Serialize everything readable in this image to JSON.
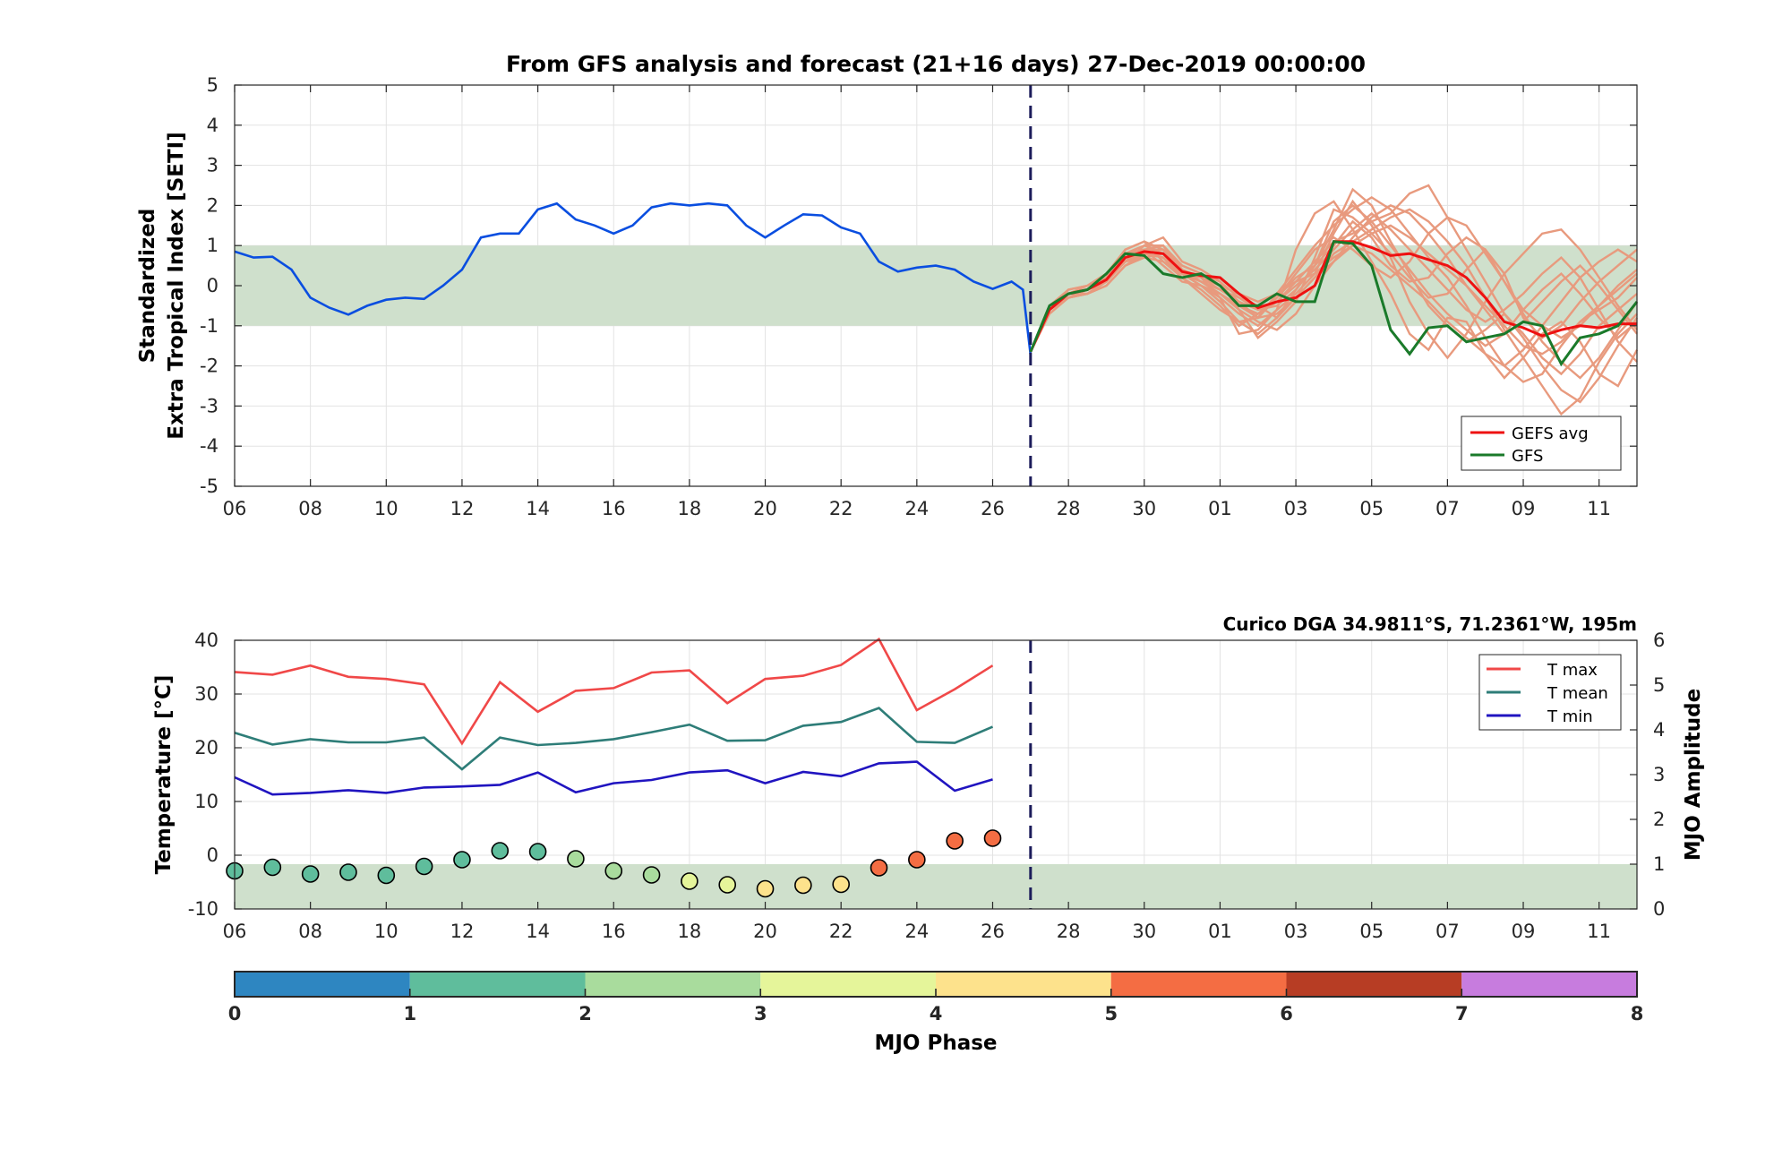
{
  "colors": {
    "analysis": "#0a4ee0",
    "member": "#e89a7e",
    "gefs_avg": "#ee1111",
    "gfs": "#1a7a2a",
    "band": "#cfe0cc",
    "dash": "#1c1c5a",
    "tmax": "#f04848",
    "tmean": "#2e7d78",
    "tmin": "#2014c0"
  },
  "chart_data": [
    {
      "type": "line",
      "title": "From GFS analysis and forecast (21+16 days) 27-Dec-2019 00:00:00",
      "ylabel_line1": "Standardized",
      "ylabel_line2": "Extra Tropical Index [SETI]",
      "xlim": [
        0,
        37
      ],
      "ylim": [
        -5,
        5
      ],
      "yticks": [
        "5",
        "4",
        "3",
        "2",
        "1",
        "0",
        "-1",
        "-2",
        "-3",
        "-4",
        "-5"
      ],
      "xticks": [
        "06",
        "08",
        "10",
        "12",
        "14",
        "16",
        "18",
        "20",
        "22",
        "24",
        "26",
        "28",
        "30",
        "01",
        "03",
        "05",
        "07",
        "09",
        "11"
      ],
      "band": [
        -1,
        1
      ],
      "forecast_start": 21,
      "legend": {
        "placement": "bottom-right",
        "gefs_avg": "GEFS avg",
        "gfs": "GFS"
      },
      "analysis": {
        "x": [
          0,
          0.5,
          1,
          1.5,
          2,
          2.5,
          3,
          3.5,
          4,
          4.5,
          5,
          5.5,
          6,
          6.5,
          7,
          7.5,
          8,
          8.5,
          9,
          9.5,
          10,
          10.5,
          11,
          11.5,
          12,
          12.5,
          13,
          13.5,
          14,
          14.5,
          15,
          15.5,
          16,
          16.5,
          17,
          17.5,
          18,
          18.5,
          19,
          19.5,
          20,
          20.5,
          20.8,
          21
        ],
        "y": [
          0.85,
          0.7,
          0.72,
          0.4,
          -0.3,
          -0.55,
          -0.72,
          -0.5,
          -0.35,
          -0.3,
          -0.33,
          0.0,
          0.4,
          1.2,
          1.3,
          1.3,
          1.9,
          2.05,
          1.65,
          1.5,
          1.3,
          1.5,
          1.95,
          2.05,
          2.0,
          2.05,
          2.0,
          1.5,
          1.2,
          1.5,
          1.78,
          1.75,
          1.45,
          1.3,
          0.6,
          0.35,
          0.45,
          0.5,
          0.4,
          0.1,
          -0.08,
          0.1,
          -0.1,
          -1.72
        ]
      },
      "gefs_avg": {
        "x": [
          21,
          21.5,
          22,
          22.5,
          23,
          23.5,
          24,
          24.5,
          25,
          25.5,
          26,
          26.5,
          27,
          27.5,
          28,
          28.5,
          29,
          29.5,
          30,
          30.5,
          31,
          31.5,
          32,
          32.5,
          33,
          33.5,
          34,
          34.5,
          35,
          35.5,
          36,
          36.5,
          37
        ],
        "y": [
          -1.65,
          -0.6,
          -0.2,
          -0.1,
          0.15,
          0.7,
          0.85,
          0.8,
          0.35,
          0.25,
          0.2,
          -0.2,
          -0.55,
          -0.4,
          -0.3,
          0.0,
          1.1,
          1.1,
          0.95,
          0.75,
          0.8,
          0.65,
          0.5,
          0.2,
          -0.3,
          -0.9,
          -1.05,
          -1.25,
          -1.1,
          -1.0,
          -1.05,
          -0.95,
          -0.95
        ]
      },
      "gfs": {
        "x": [
          21,
          21.5,
          22,
          22.5,
          23,
          23.5,
          24,
          24.5,
          25,
          25.5,
          26,
          26.5,
          27,
          27.5,
          28,
          28.5,
          29,
          29.5,
          30,
          30.5,
          31,
          31.5,
          32,
          32.5,
          33,
          33.5,
          34,
          34.5,
          35,
          35.5,
          36,
          36.5,
          37
        ],
        "y": [
          -1.65,
          -0.5,
          -0.2,
          -0.1,
          0.3,
          0.8,
          0.75,
          0.3,
          0.2,
          0.3,
          0.0,
          -0.5,
          -0.5,
          -0.2,
          -0.4,
          -0.4,
          1.1,
          1.05,
          0.5,
          -1.1,
          -1.7,
          -1.05,
          -1.0,
          -1.4,
          -1.3,
          -1.2,
          -0.9,
          -1.0,
          -1.95,
          -1.3,
          -1.2,
          -1.0,
          -0.4
        ]
      },
      "members_x": [
        21,
        21.5,
        22,
        22.5,
        23,
        23.5,
        24,
        24.5,
        25,
        25.5,
        26,
        26.5,
        27,
        27.5,
        28,
        28.5,
        29,
        29.5,
        30,
        30.5,
        31,
        31.5,
        32,
        32.5,
        33,
        33.5,
        34,
        34.5,
        35,
        35.5,
        36,
        36.5,
        37
      ],
      "members": [
        [
          -1.65,
          -0.6,
          -0.2,
          -0.1,
          0.2,
          0.9,
          1.1,
          0.6,
          0.3,
          0.2,
          -0.3,
          -1.2,
          -1.1,
          -0.6,
          0.9,
          1.8,
          2.1,
          1.4,
          0.6,
          -0.2,
          -1.2,
          -1.6,
          -0.8,
          -0.9,
          -1.7,
          -2.3,
          -1.8,
          -1.2,
          -0.9,
          -1.4,
          -2.2,
          -2.5,
          -1.6
        ],
        [
          -1.65,
          -0.6,
          -0.3,
          -0.2,
          0.1,
          0.6,
          0.9,
          1.0,
          0.5,
          0.3,
          0.0,
          -0.4,
          -0.8,
          -0.3,
          0.2,
          0.5,
          1.4,
          2.4,
          2.0,
          1.1,
          0.3,
          -0.5,
          -1.0,
          -1.4,
          -1.1,
          -0.7,
          -1.2,
          -1.8,
          -2.2,
          -1.7,
          -1.0,
          -0.6,
          -0.2
        ],
        [
          -1.65,
          -0.5,
          -0.1,
          0.0,
          0.3,
          0.8,
          1.0,
          1.2,
          0.6,
          0.4,
          0.1,
          -0.6,
          -1.3,
          -0.9,
          -0.4,
          0.7,
          1.9,
          1.7,
          1.3,
          0.8,
          0.2,
          -0.3,
          -0.2,
          0.4,
          0.9,
          0.3,
          -0.8,
          -1.3,
          -1.0,
          -0.4,
          0.1,
          0.5,
          0.9
        ],
        [
          -1.65,
          -0.7,
          -0.3,
          -0.2,
          0.0,
          0.5,
          0.8,
          0.7,
          0.2,
          -0.2,
          -0.6,
          -0.9,
          -0.8,
          -0.2,
          0.4,
          1.0,
          1.5,
          1.9,
          2.2,
          1.9,
          1.3,
          0.7,
          0.2,
          -0.5,
          -1.3,
          -2.0,
          -2.4,
          -2.2,
          -1.5,
          -0.9,
          -0.6,
          -0.3,
          0.2
        ],
        [
          -1.65,
          -0.6,
          -0.2,
          -0.1,
          0.2,
          0.7,
          0.9,
          0.9,
          0.4,
          0.1,
          -0.2,
          -0.5,
          -0.7,
          -0.4,
          0.1,
          0.6,
          1.1,
          1.3,
          1.6,
          1.8,
          2.3,
          2.5,
          1.7,
          0.9,
          0.1,
          -0.7,
          -1.3,
          -2.0,
          -2.6,
          -2.9,
          -2.3,
          -1.5,
          -0.8
        ],
        [
          -1.65,
          -0.6,
          -0.2,
          0.0,
          0.3,
          0.8,
          0.9,
          0.5,
          0.1,
          0.0,
          -0.4,
          -0.9,
          -1.2,
          -0.8,
          -0.1,
          0.5,
          1.0,
          1.6,
          1.2,
          0.5,
          0.1,
          0.2,
          0.8,
          1.2,
          0.9,
          0.1,
          -0.7,
          -1.4,
          -1.9,
          -2.3,
          -1.8,
          -1.1,
          -0.4
        ],
        [
          -1.65,
          -0.6,
          -0.3,
          -0.1,
          0.1,
          0.7,
          0.8,
          0.7,
          0.3,
          0.0,
          -0.3,
          -0.7,
          -1.0,
          -0.6,
          -0.2,
          0.3,
          1.3,
          2.1,
          1.5,
          0.7,
          -0.4,
          -1.2,
          -1.8,
          -1.2,
          -0.4,
          0.3,
          0.8,
          1.3,
          1.4,
          0.9,
          0.2,
          -0.5,
          -1.1
        ],
        [
          -1.65,
          -0.5,
          -0.2,
          -0.1,
          0.2,
          0.6,
          1.0,
          1.0,
          0.4,
          0.2,
          -0.1,
          -0.4,
          -0.6,
          -0.4,
          0.0,
          0.4,
          0.9,
          1.4,
          1.8,
          1.4,
          0.9,
          0.4,
          -0.1,
          -0.6,
          -0.9,
          -0.6,
          -0.2,
          0.3,
          0.7,
          0.2,
          -0.6,
          -1.4,
          -1.9
        ],
        [
          -1.65,
          -0.6,
          -0.2,
          -0.1,
          0.2,
          0.8,
          1.0,
          0.8,
          0.3,
          0.1,
          -0.1,
          -0.3,
          -0.5,
          -0.8,
          -0.3,
          0.2,
          0.8,
          1.1,
          1.4,
          1.7,
          1.9,
          1.6,
          1.1,
          0.5,
          -0.3,
          -1.1,
          -1.8,
          -2.5,
          -3.2,
          -2.8,
          -1.9,
          -1.2,
          -0.7
        ],
        [
          -1.65,
          -0.6,
          -0.2,
          -0.1,
          0.1,
          0.6,
          0.7,
          0.6,
          0.2,
          -0.1,
          -0.5,
          -1.0,
          -0.7,
          -0.3,
          0.3,
          0.9,
          1.2,
          0.9,
          0.5,
          0.2,
          0.6,
          1.3,
          1.7,
          1.5,
          0.8,
          0.1,
          -0.6,
          -1.0,
          -1.3,
          -1.0,
          -0.5,
          0.0,
          0.4
        ],
        [
          -1.65,
          -0.6,
          -0.1,
          0.0,
          0.3,
          0.9,
          1.1,
          0.9,
          0.4,
          0.2,
          0.0,
          -0.2,
          -0.4,
          -0.2,
          0.1,
          0.3,
          0.7,
          1.0,
          1.3,
          1.5,
          1.2,
          0.8,
          0.4,
          0.0,
          -0.5,
          -1.0,
          -1.5,
          -1.7,
          -1.4,
          -0.9,
          -0.5,
          -0.1,
          0.3
        ],
        [
          -1.65,
          -0.6,
          -0.2,
          -0.2,
          0.0,
          0.5,
          0.7,
          0.8,
          0.3,
          0.1,
          -0.2,
          -0.6,
          -0.9,
          -1.1,
          -0.7,
          0.0,
          0.6,
          1.2,
          1.7,
          2.0,
          1.8,
          1.3,
          0.7,
          0.0,
          -0.6,
          -1.2,
          -0.9,
          -0.4,
          0.1,
          0.5,
          0.0,
          -0.6,
          -1.2
        ],
        [
          -1.65,
          -0.5,
          -0.2,
          -0.1,
          0.2,
          0.7,
          0.9,
          0.9,
          0.5,
          0.3,
          0.1,
          -0.3,
          -0.6,
          -0.5,
          -0.1,
          0.5,
          1.6,
          2.0,
          1.6,
          1.0,
          0.4,
          -0.2,
          -0.7,
          -1.1,
          -1.5,
          -1.2,
          -0.6,
          -0.1,
          0.3,
          -0.2,
          -0.8,
          -1.3,
          -0.9
        ],
        [
          -1.65,
          -0.6,
          -0.3,
          -0.2,
          0.1,
          0.6,
          0.8,
          0.7,
          0.3,
          0.0,
          -0.2,
          -0.5,
          -0.8,
          -0.7,
          -0.3,
          0.2,
          0.6,
          1.0,
          0.8,
          0.4,
          0.0,
          -0.4,
          -0.9,
          -1.3,
          -1.7,
          -2.0,
          -1.6,
          -1.0,
          -0.4,
          0.2,
          0.6,
          0.9,
          0.6
        ]
      ]
    },
    {
      "type": "scatter",
      "title": "Curico DGA 34.9811°S, 71.2361°W, 195m",
      "ylabel": "Temperature [°C]",
      "y2label": "MJO Amplitude",
      "xlim": [
        0,
        37
      ],
      "ylim": [
        -10,
        40
      ],
      "y2lim": [
        0,
        6
      ],
      "yticks": [
        "40",
        "30",
        "20",
        "10",
        "0",
        "-10"
      ],
      "y2ticks": [
        "6",
        "5",
        "4",
        "3",
        "2",
        "1",
        "0"
      ],
      "band_amplitude": [
        0,
        1
      ],
      "forecast_start": 21,
      "legend": {
        "placement": "top-right",
        "tmax": "T max",
        "tmean": "T mean",
        "tmin": "T min"
      },
      "x": [
        0,
        1,
        2,
        3,
        4,
        5,
        6,
        7,
        8,
        9,
        10,
        11,
        12,
        13,
        14,
        15,
        16,
        17,
        18,
        19,
        20
      ],
      "tmax": [
        34.1,
        33.6,
        35.3,
        33.2,
        32.8,
        31.8,
        20.8,
        32.2,
        26.7,
        30.6,
        31.1,
        34.0,
        34.4,
        28.3,
        32.8,
        33.4,
        35.4,
        40.2,
        27.0,
        30.9,
        35.3
      ],
      "tmean": [
        22.8,
        20.6,
        21.6,
        21.0,
        21.0,
        21.9,
        16.0,
        21.9,
        20.5,
        20.9,
        21.6,
        22.9,
        24.3,
        21.3,
        21.4,
        24.1,
        24.8,
        27.4,
        21.1,
        20.9,
        23.9
      ],
      "tmin": [
        14.5,
        11.3,
        11.6,
        12.1,
        11.6,
        12.6,
        12.8,
        13.1,
        15.4,
        11.7,
        13.4,
        14.0,
        15.4,
        15.8,
        13.4,
        15.5,
        14.7,
        17.1,
        17.4,
        12.0,
        14.1
      ],
      "mjo_amplitude": [
        0.85,
        0.93,
        0.78,
        0.82,
        0.75,
        0.95,
        1.1,
        1.3,
        1.28,
        1.12,
        0.85,
        0.76,
        0.62,
        0.54,
        0.45,
        0.53,
        0.55,
        0.92,
        1.1,
        1.52,
        1.58
      ],
      "mjo_phase": [
        1.2,
        1.3,
        1.4,
        1.4,
        1.5,
        1.5,
        1.6,
        1.8,
        1.8,
        2.3,
        2.4,
        2.5,
        3.2,
        3.5,
        4.2,
        4.3,
        4.4,
        5.3,
        5.4,
        5.5,
        5.5
      ]
    },
    {
      "type": "colorbar",
      "label": "MJO Phase",
      "ticks": [
        "0",
        "1",
        "2",
        "3",
        "4",
        "5",
        "6",
        "7",
        "8"
      ],
      "colors": [
        "#2e86c1",
        "#5fbd9c",
        "#a9dc9d",
        "#e5f59a",
        "#fde28c",
        "#f46d43",
        "#b73d24",
        "#c77cde"
      ]
    }
  ]
}
